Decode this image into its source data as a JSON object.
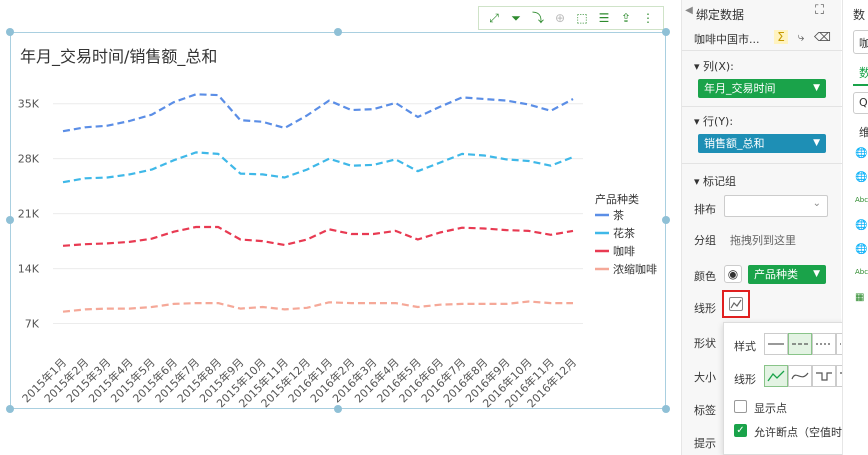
{
  "chart": {
    "title": "年月_交易时间/销售额_总和",
    "legend_title": "产品种类"
  },
  "chart_data": {
    "type": "line",
    "title": "年月_交易时间/销售额_总和",
    "categories": [
      "2015年1月",
      "2015年2月",
      "2015年3月",
      "2015年4月",
      "2015年5月",
      "2015年6月",
      "2015年7月",
      "2015年8月",
      "2015年9月",
      "2015年10月",
      "2015年11月",
      "2015年12月",
      "2016年1月",
      "2016年2月",
      "2016年3月",
      "2016年4月",
      "2016年5月",
      "2016年6月",
      "2016年7月",
      "2016年8月",
      "2016年9月",
      "2016年10月",
      "2016年11月",
      "2016年12月"
    ],
    "yticks": [
      "35K",
      "28K",
      "21K",
      "14K",
      "7K"
    ],
    "ytick_values": [
      35000,
      28000,
      21000,
      14000,
      7000
    ],
    "ylim": [
      3500,
      37000
    ],
    "grid": true,
    "legend_position": "right",
    "line_style": "dashed",
    "series": [
      {
        "name": "茶",
        "color": "#5b8ee6",
        "values": [
          31500,
          32000,
          32200,
          32800,
          33600,
          35200,
          36200,
          36100,
          32900,
          32700,
          31900,
          33500,
          35400,
          34200,
          34300,
          35100,
          33300,
          34600,
          35800,
          35600,
          35400,
          34900,
          34100,
          35600
        ]
      },
      {
        "name": "花茶",
        "color": "#3fb8e8",
        "values": [
          25000,
          25500,
          25600,
          26000,
          26600,
          27800,
          28800,
          28600,
          26100,
          26000,
          25600,
          26600,
          28000,
          27100,
          27200,
          27900,
          26400,
          27500,
          28600,
          28400,
          27900,
          27700,
          27100,
          28200
        ]
      },
      {
        "name": "咖啡",
        "color": "#e83a52",
        "values": [
          16900,
          17100,
          17200,
          17400,
          17800,
          18700,
          19300,
          19300,
          17700,
          17500,
          17000,
          17700,
          19000,
          18400,
          18400,
          18800,
          17700,
          18600,
          19200,
          19100,
          18900,
          18800,
          18300,
          18800
        ]
      },
      {
        "name": "浓缩咖啡",
        "color": "#f5a898",
        "values": [
          8500,
          8800,
          8900,
          8900,
          9100,
          9500,
          9600,
          9600,
          8900,
          9100,
          8800,
          9000,
          9700,
          9600,
          9600,
          9600,
          9100,
          9400,
          9500,
          9500,
          9500,
          9800,
          9600,
          9600
        ]
      }
    ]
  },
  "toolbar": {
    "icons": [
      "fullscreen-icon",
      "filter-icon",
      "drill-icon",
      "zoom-icon",
      "select-icon",
      "list-icon",
      "export-icon",
      "more-icon"
    ]
  },
  "panel": {
    "title": "绑定数据",
    "dataset": "咖啡中国市...",
    "columns_label": "列(X):",
    "columns_field": "年月_交易时间",
    "rows_label": "行(Y):",
    "rows_field": "销售额_总和",
    "marks_label": "标记组",
    "sort_label": "排布",
    "group_label": "分组",
    "group_placeholder": "拖拽列到这里",
    "color_label": "颜色",
    "color_field": "产品种类",
    "linestyle_label": "线形",
    "shape_label": "形状",
    "size_label": "大小",
    "label_label": "标签",
    "tooltip_label": "提示",
    "colors": {
      "green": "#1aa34a",
      "teal": "#1e8fb5"
    }
  },
  "popup": {
    "style_label": "样式",
    "line_label": "线形",
    "show_points": "显示点",
    "allow_breaks": "允许断点（空值时）",
    "allow_breaks_checked": true,
    "show_points_checked": false
  },
  "strip": {
    "title": "数",
    "box": "咖",
    "tab": "数",
    "search": "Q",
    "item": "维"
  }
}
